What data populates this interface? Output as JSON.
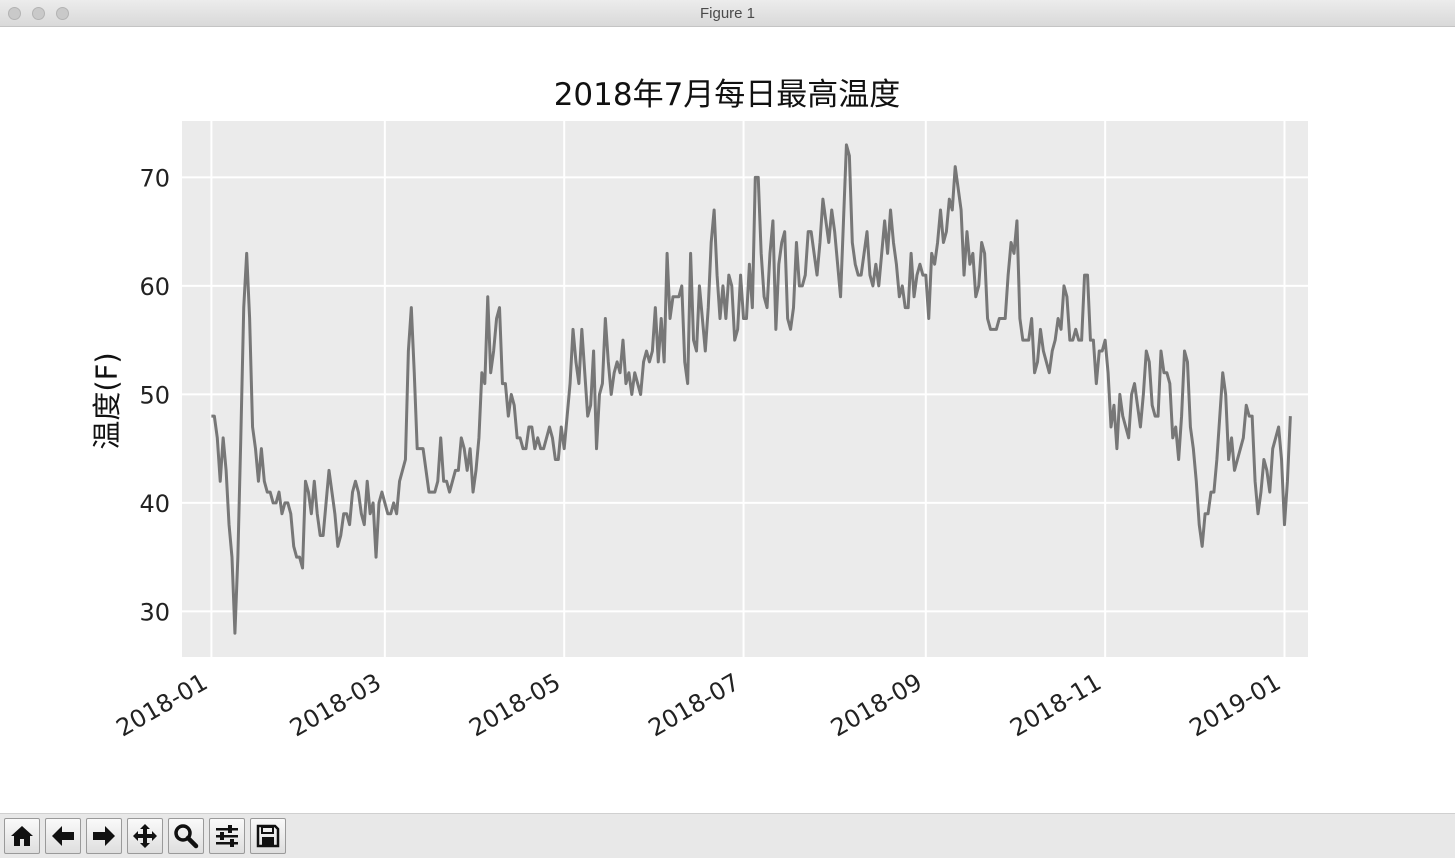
{
  "window": {
    "title": "Figure 1"
  },
  "toolbar": {
    "buttons": [
      {
        "name": "home-icon"
      },
      {
        "name": "back-arrow-icon"
      },
      {
        "name": "forward-arrow-icon"
      },
      {
        "name": "pan-icon"
      },
      {
        "name": "zoom-icon"
      },
      {
        "name": "configure-subplots-icon"
      },
      {
        "name": "save-icon"
      }
    ]
  },
  "chart_data": {
    "type": "line",
    "title": "2018年7月每日最高温度",
    "xlabel": "",
    "ylabel": "温度(F)",
    "x_start": "2018-01-01",
    "x_end": "2018-12-31",
    "xlim": [
      "2017-12-22",
      "2019-01-09"
    ],
    "ylim": [
      25.8,
      75.2
    ],
    "yticks": [
      30,
      40,
      50,
      60,
      70
    ],
    "xticks": [
      "2018-01",
      "2018-03",
      "2018-05",
      "2018-07",
      "2018-09",
      "2018-11",
      "2019-01"
    ],
    "grid": true,
    "line_color": "#777777",
    "background_color": "#ebebeb",
    "series": [
      {
        "values": [
          48,
          48,
          46,
          42,
          46,
          43,
          38,
          35,
          28,
          35,
          46,
          58,
          63,
          57,
          47,
          45,
          42,
          45,
          42,
          41,
          41,
          40,
          40,
          41,
          39,
          40,
          40,
          39,
          36,
          35,
          35,
          34,
          42,
          41,
          39,
          42,
          39,
          37,
          37,
          40,
          43,
          41,
          39,
          36,
          37,
          39,
          39,
          38,
          41,
          42,
          41,
          39,
          38,
          42,
          39,
          40,
          35,
          40,
          41,
          40,
          39,
          39,
          40,
          39,
          42,
          43,
          44,
          54,
          58,
          52,
          45,
          45,
          45,
          43,
          41,
          41,
          41,
          42,
          46,
          42,
          42,
          41,
          42,
          43,
          43,
          46,
          45,
          43,
          45,
          41,
          43,
          46,
          52,
          51,
          59,
          52,
          54,
          57,
          58,
          51,
          51,
          48,
          50,
          49,
          46,
          46,
          45,
          45,
          47,
          47,
          45,
          46,
          45,
          45,
          46,
          47,
          46,
          44,
          44,
          47,
          45,
          48,
          51,
          56,
          53,
          51,
          56,
          52,
          48,
          49,
          54,
          45,
          50,
          51,
          57,
          53,
          50,
          52,
          53,
          52,
          55,
          51,
          52,
          50,
          52,
          51,
          50,
          53,
          54,
          53,
          54,
          58,
          53,
          57,
          53,
          63,
          57,
          59,
          59,
          59,
          60,
          53,
          51,
          63,
          55,
          54,
          60,
          57,
          54,
          58,
          64,
          67,
          61,
          57,
          60,
          57,
          61,
          60,
          55,
          56,
          61,
          57,
          57,
          62,
          58,
          70,
          70,
          63,
          59,
          58,
          63,
          66,
          56,
          62,
          64,
          65,
          57,
          56,
          58,
          64,
          60,
          60,
          61,
          65,
          65,
          63,
          61,
          64,
          68,
          66,
          64,
          67,
          65,
          62,
          59,
          66,
          73,
          72,
          64,
          62,
          61,
          61,
          63,
          65,
          61,
          60,
          62,
          60,
          63,
          66,
          63,
          67,
          64,
          62,
          59,
          60,
          58,
          58,
          63,
          59,
          61,
          62,
          61,
          61,
          57,
          63,
          62,
          64,
          67,
          64,
          65,
          68,
          67,
          71,
          69,
          67,
          61,
          65,
          62,
          63,
          59,
          60,
          64,
          63,
          57,
          56,
          56,
          56,
          57,
          57,
          57,
          61,
          64,
          63,
          66,
          57,
          55,
          55,
          55,
          57,
          52,
          53,
          56,
          54,
          53,
          52,
          54,
          55,
          57,
          56,
          60,
          59,
          55,
          55,
          56,
          55,
          55,
          61,
          61,
          55,
          55,
          51,
          54,
          54,
          55,
          52,
          47,
          49,
          45,
          50,
          48,
          47,
          46,
          50,
          51,
          49,
          47,
          50,
          54,
          53,
          49,
          48,
          48,
          54,
          52,
          52,
          51,
          46,
          47,
          44,
          48,
          54,
          53,
          47,
          45,
          42,
          38,
          36,
          39,
          39,
          41,
          41,
          44,
          48,
          52,
          50,
          44,
          46,
          43,
          44,
          45,
          46,
          49,
          48,
          48,
          42,
          39,
          41,
          44,
          43,
          41,
          45,
          46,
          47,
          44,
          38,
          42,
          48
        ]
      }
    ]
  }
}
